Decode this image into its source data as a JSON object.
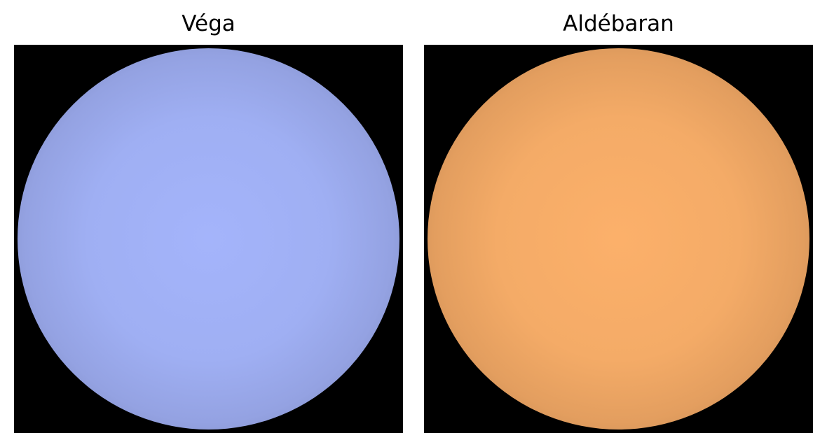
{
  "panels": [
    {
      "title": "Véga",
      "star_color": "#a4b4fb",
      "background_color": "#000000"
    },
    {
      "title": "Aldébaran",
      "star_color": "#fcb06a",
      "background_color": "#000000"
    }
  ]
}
